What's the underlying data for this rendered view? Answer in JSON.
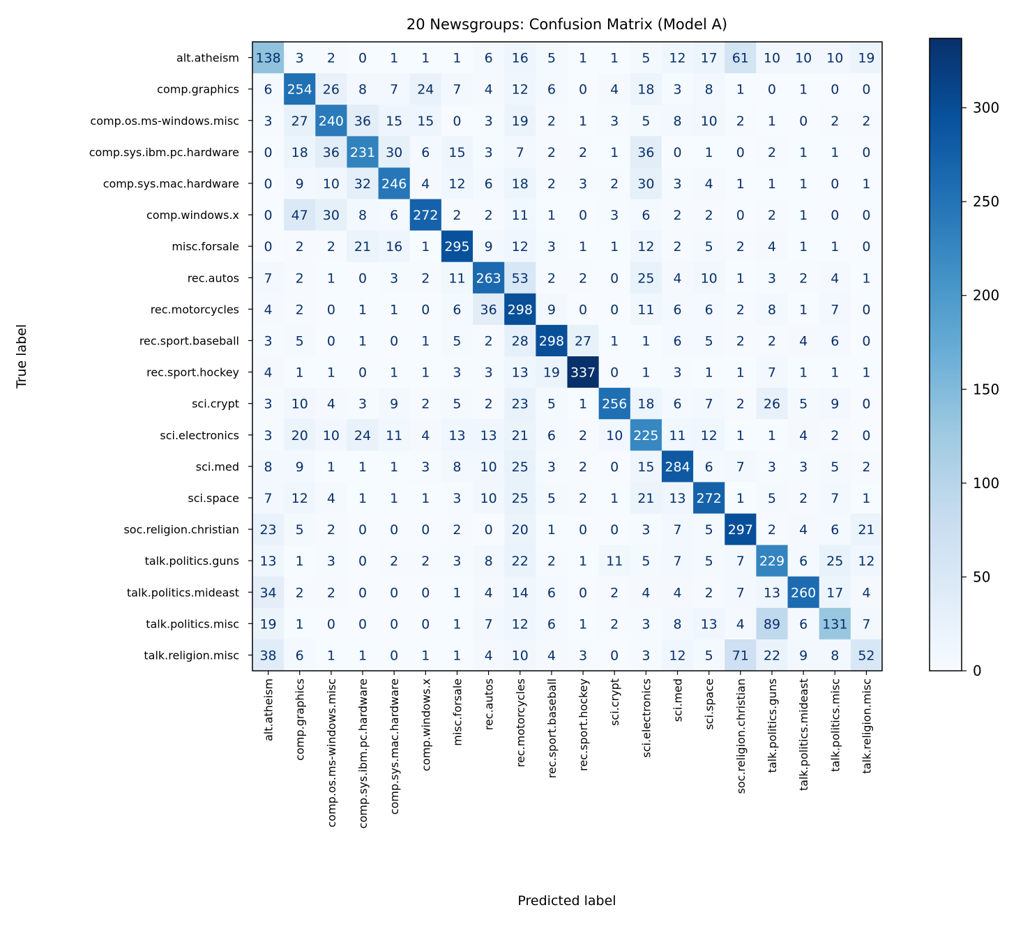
{
  "chart_data": {
    "type": "heatmap",
    "title": "20 Newsgroups: Confusion Matrix (Model A)",
    "xlabel": "Predicted label",
    "ylabel": "True label",
    "colormap": "Blues",
    "color_range": [
      0,
      337
    ],
    "colorbar_ticks": [
      "0",
      "50",
      "100",
      "150",
      "200",
      "250",
      "300"
    ],
    "labels": [
      "alt.atheism",
      "comp.graphics",
      "comp.os.ms-windows.misc",
      "comp.sys.ibm.pc.hardware",
      "comp.sys.mac.hardware",
      "comp.windows.x",
      "misc.forsale",
      "rec.autos",
      "rec.motorcycles",
      "rec.sport.baseball",
      "rec.sport.hockey",
      "sci.crypt",
      "sci.electronics",
      "sci.med",
      "sci.space",
      "soc.religion.christian",
      "talk.politics.guns",
      "talk.politics.mideast",
      "talk.politics.misc",
      "talk.religion.misc"
    ],
    "matrix": [
      [
        138,
        3,
        2,
        0,
        1,
        1,
        1,
        6,
        16,
        5,
        1,
        1,
        5,
        12,
        17,
        61,
        10,
        10,
        10,
        19
      ],
      [
        6,
        254,
        26,
        8,
        7,
        24,
        7,
        4,
        12,
        6,
        0,
        4,
        18,
        3,
        8,
        1,
        0,
        1,
        0,
        0
      ],
      [
        3,
        27,
        240,
        36,
        15,
        15,
        0,
        3,
        19,
        2,
        1,
        3,
        5,
        8,
        10,
        2,
        1,
        0,
        2,
        2
      ],
      [
        0,
        18,
        36,
        231,
        30,
        6,
        15,
        3,
        7,
        2,
        2,
        1,
        36,
        0,
        1,
        0,
        2,
        1,
        1,
        0
      ],
      [
        0,
        9,
        10,
        32,
        246,
        4,
        12,
        6,
        18,
        2,
        3,
        2,
        30,
        3,
        4,
        1,
        1,
        1,
        0,
        1
      ],
      [
        0,
        47,
        30,
        8,
        6,
        272,
        2,
        2,
        11,
        1,
        0,
        3,
        6,
        2,
        2,
        0,
        2,
        1,
        0,
        0
      ],
      [
        0,
        2,
        2,
        21,
        16,
        1,
        295,
        9,
        12,
        3,
        1,
        1,
        12,
        2,
        5,
        2,
        4,
        1,
        1,
        0
      ],
      [
        7,
        2,
        1,
        0,
        3,
        2,
        11,
        263,
        53,
        2,
        2,
        0,
        25,
        4,
        10,
        1,
        3,
        2,
        4,
        1
      ],
      [
        4,
        2,
        0,
        1,
        1,
        0,
        6,
        36,
        298,
        9,
        0,
        0,
        11,
        6,
        6,
        2,
        8,
        1,
        7,
        0
      ],
      [
        3,
        5,
        0,
        1,
        0,
        1,
        5,
        2,
        28,
        298,
        27,
        1,
        1,
        6,
        5,
        2,
        2,
        4,
        6,
        0
      ],
      [
        4,
        1,
        1,
        0,
        1,
        1,
        3,
        3,
        13,
        19,
        337,
        0,
        1,
        3,
        1,
        1,
        7,
        1,
        1,
        1
      ],
      [
        3,
        10,
        4,
        3,
        9,
        2,
        5,
        2,
        23,
        5,
        1,
        256,
        18,
        6,
        7,
        2,
        26,
        5,
        9,
        0
      ],
      [
        3,
        20,
        10,
        24,
        11,
        4,
        13,
        13,
        21,
        6,
        2,
        10,
        225,
        11,
        12,
        1,
        1,
        4,
        2,
        0
      ],
      [
        8,
        9,
        1,
        1,
        1,
        3,
        8,
        10,
        25,
        3,
        2,
        0,
        15,
        284,
        6,
        7,
        3,
        3,
        5,
        2
      ],
      [
        7,
        12,
        4,
        1,
        1,
        1,
        3,
        10,
        25,
        5,
        2,
        1,
        21,
        13,
        272,
        1,
        5,
        2,
        7,
        1
      ],
      [
        23,
        5,
        2,
        0,
        0,
        0,
        2,
        0,
        20,
        1,
        0,
        0,
        3,
        7,
        5,
        297,
        2,
        4,
        6,
        21
      ],
      [
        13,
        1,
        3,
        0,
        2,
        2,
        3,
        8,
        22,
        2,
        1,
        11,
        5,
        7,
        5,
        7,
        229,
        6,
        25,
        12
      ],
      [
        34,
        2,
        2,
        0,
        0,
        0,
        1,
        4,
        14,
        6,
        0,
        2,
        4,
        4,
        2,
        7,
        13,
        260,
        17,
        4
      ],
      [
        19,
        1,
        0,
        0,
        0,
        0,
        1,
        7,
        12,
        6,
        1,
        2,
        3,
        8,
        13,
        4,
        89,
        6,
        131,
        7
      ],
      [
        38,
        6,
        1,
        1,
        0,
        1,
        1,
        4,
        10,
        4,
        3,
        0,
        3,
        12,
        5,
        71,
        22,
        9,
        8,
        52
      ]
    ]
  }
}
